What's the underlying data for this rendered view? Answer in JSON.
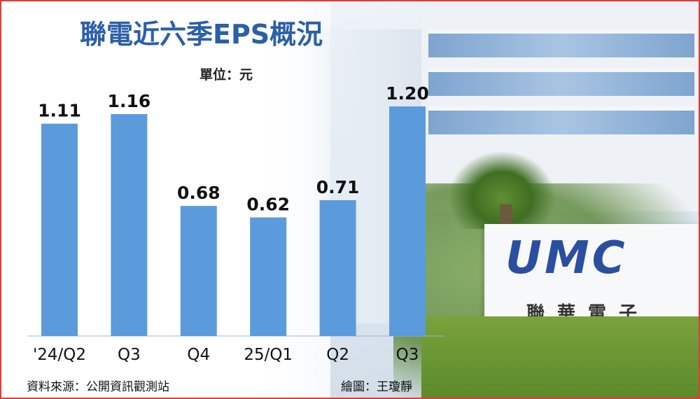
{
  "chart_data": {
    "type": "bar",
    "title": "聯電近六季EPS概況",
    "unit_label": "單位：元",
    "categories": [
      "'24/Q2",
      "Q3",
      "Q4",
      "25/Q1",
      "Q2",
      "Q3"
    ],
    "values": [
      1.11,
      1.16,
      0.68,
      0.62,
      0.71,
      1.2
    ],
    "value_labels": [
      "1.11",
      "1.16",
      "0.68",
      "0.62",
      "0.71",
      "1.20"
    ],
    "ylim": [
      0,
      1.31
    ],
    "grid": false,
    "bar_color": "#5b9bdc"
  },
  "footer": {
    "source": "資料來源：公開資訊觀測站",
    "credit": "繪圖：王瓊靜"
  },
  "background": {
    "sign_logo": "UMC",
    "sign_text": "聯華電子"
  },
  "colors": {
    "title": "#2b5fa8",
    "frame_border": "#e23a3a"
  }
}
